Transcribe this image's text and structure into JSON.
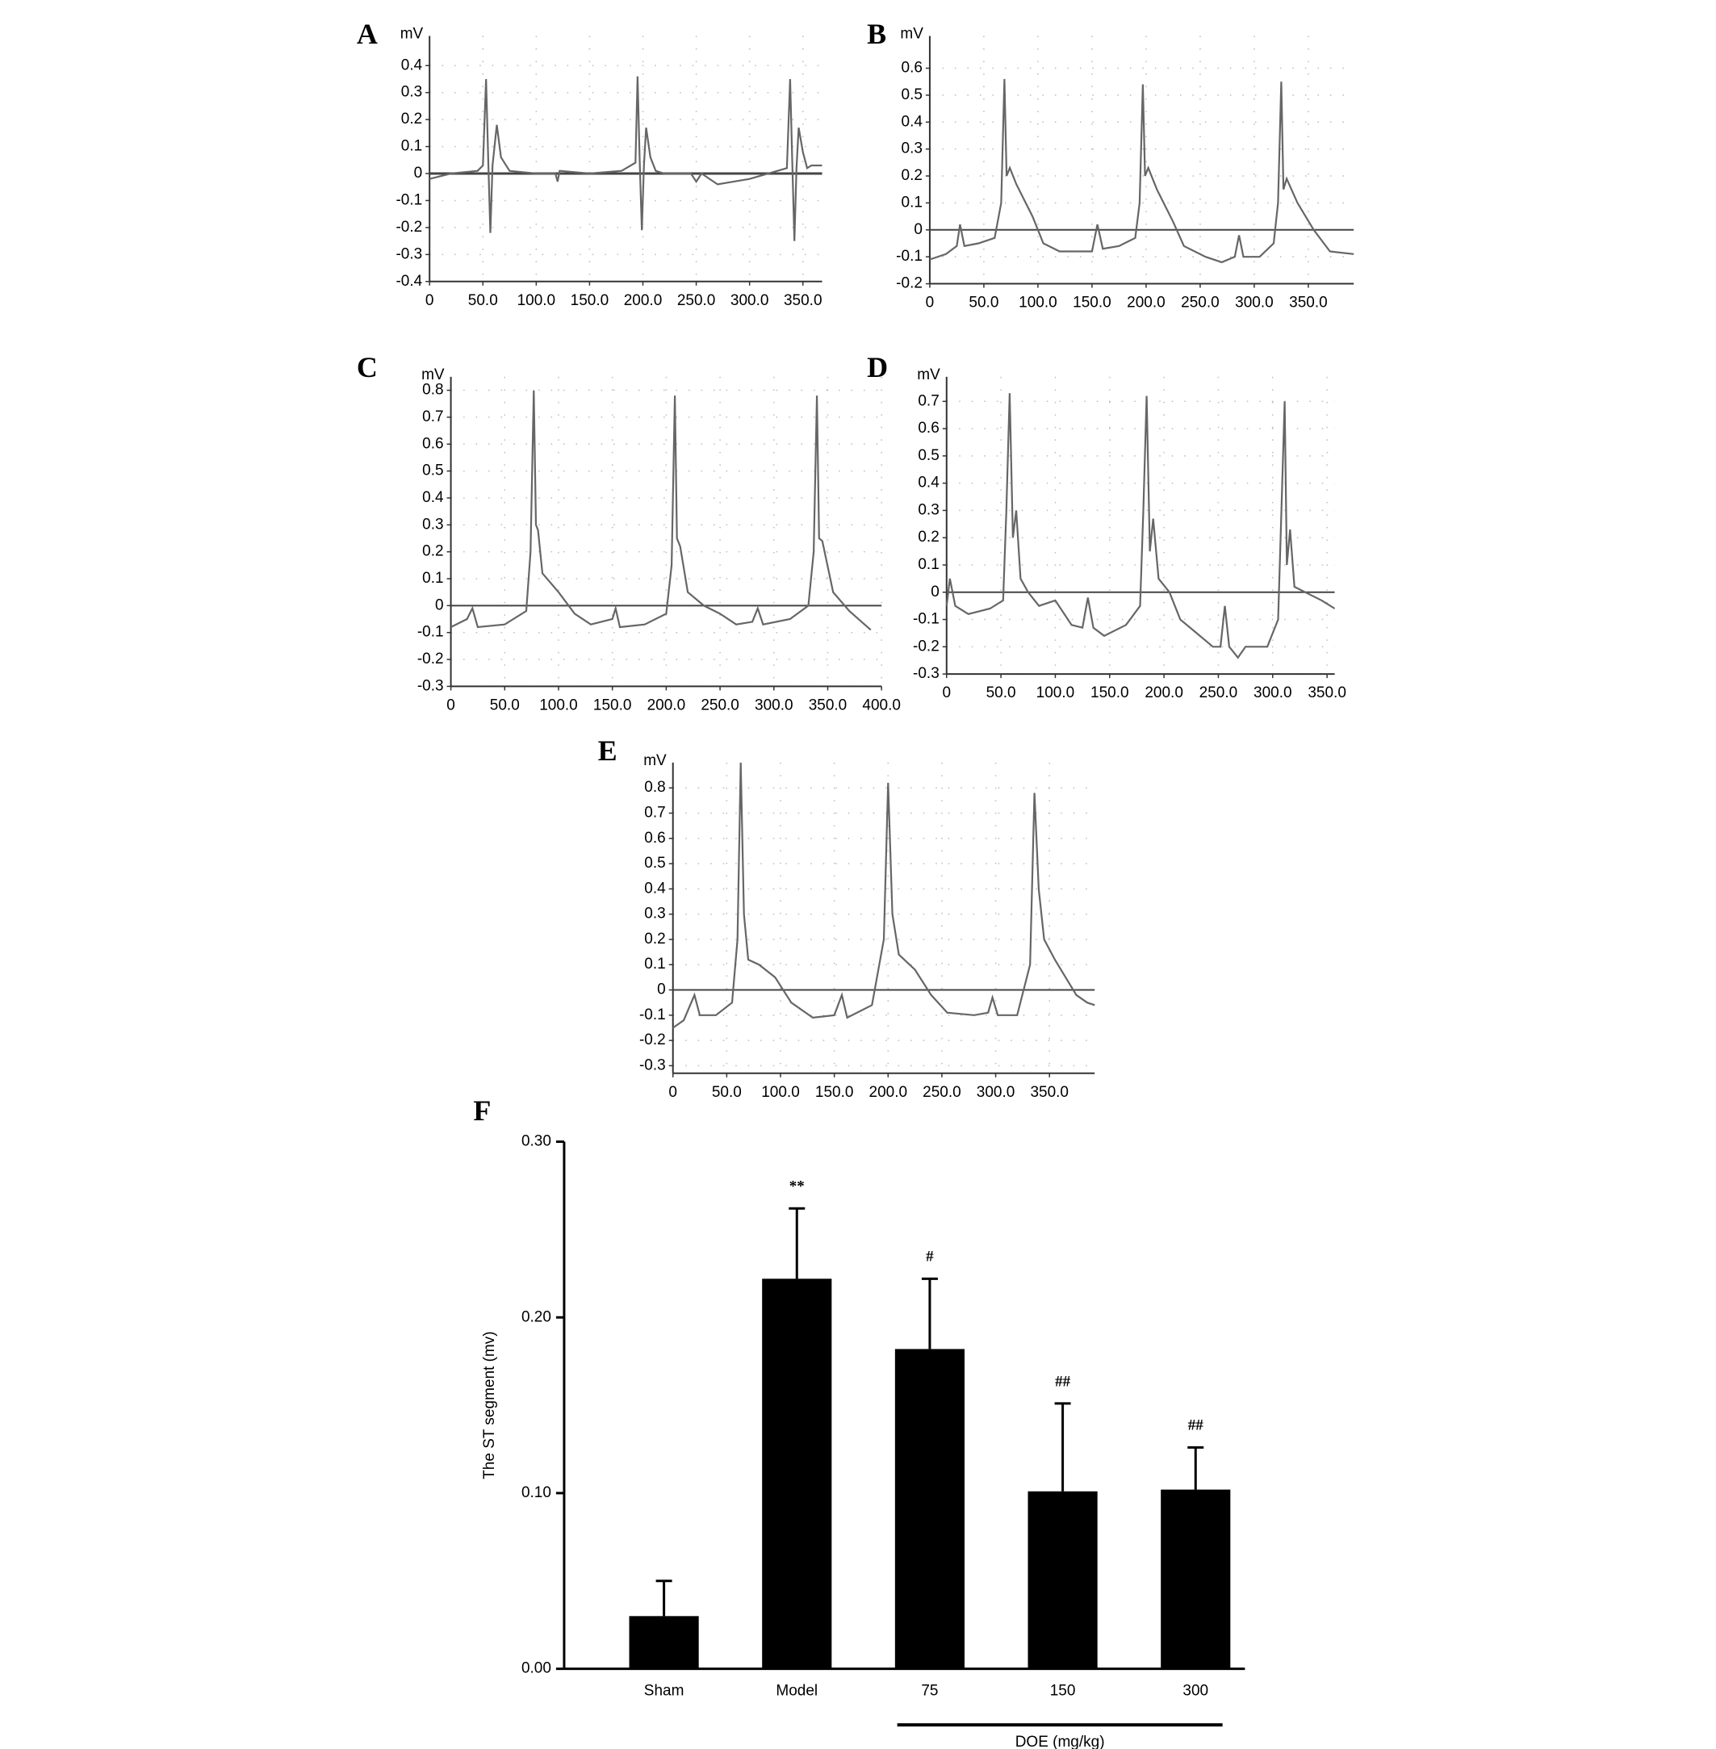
{
  "chart_data": [
    {
      "type": "line",
      "panel": "A",
      "y_label": "mV",
      "color": "#666666",
      "grid": true,
      "xlim": [
        0,
        368
      ],
      "ylim": [
        -0.4,
        0.51
      ],
      "xticks": [
        0,
        {
          "value": 50,
          "label": "50.0"
        },
        {
          "value": 100,
          "label": "100.0"
        },
        {
          "value": 150,
          "label": "150.0"
        },
        {
          "value": 200,
          "label": "200.0"
        },
        {
          "value": 250,
          "label": "250.0"
        },
        {
          "value": 300,
          "label": "300.0"
        },
        {
          "value": 350,
          "label": "350.0"
        }
      ],
      "yticks": [
        -0.4,
        -0.3,
        -0.2,
        -0.1,
        0,
        0.1,
        0.2,
        0.3,
        0.4
      ],
      "x": [
        0,
        20,
        45,
        50,
        53,
        55,
        57,
        59,
        63,
        67,
        75,
        100,
        118,
        120,
        122,
        150,
        180,
        193,
        195,
        197,
        199,
        201,
        203,
        207,
        212,
        220,
        245,
        250,
        255,
        270,
        300,
        335,
        338,
        340,
        342,
        344,
        346,
        350,
        354,
        358,
        368
      ],
      "values": [
        -0.02,
        0,
        0.01,
        0.03,
        0.35,
        0.05,
        -0.22,
        0.03,
        0.18,
        0.06,
        0.01,
        0,
        0,
        -0.03,
        0.01,
        0,
        0.01,
        0.04,
        0.36,
        0.05,
        -0.21,
        0.03,
        0.17,
        0.06,
        0.01,
        0,
        0,
        -0.03,
        0,
        -0.04,
        -0.02,
        0.02,
        0.35,
        0.05,
        -0.25,
        0.02,
        0.17,
        0.08,
        0.02,
        0.03,
        0.03
      ]
    },
    {
      "type": "line",
      "panel": "B",
      "y_label": "mV",
      "color": "#666666",
      "grid": true,
      "xlim": [
        0,
        392
      ],
      "ylim": [
        -0.2,
        0.72
      ],
      "xticks": [
        0,
        {
          "value": 50,
          "label": "50.0"
        },
        {
          "value": 100,
          "label": "100.0"
        },
        {
          "value": 150,
          "label": "150.0"
        },
        {
          "value": 200,
          "label": "200.0"
        },
        {
          "value": 250,
          "label": "250.0"
        },
        {
          "value": 300,
          "label": "300.0"
        },
        {
          "value": 350,
          "label": "350.0"
        }
      ],
      "yticks": [
        -0.2,
        -0.1,
        0,
        0.1,
        0.2,
        0.3,
        0.4,
        0.5,
        0.6
      ],
      "x": [
        0,
        15,
        25,
        28,
        32,
        45,
        60,
        66,
        69,
        71,
        74,
        80,
        95,
        105,
        120,
        150,
        155,
        160,
        175,
        190,
        194,
        197,
        199,
        202,
        210,
        225,
        235,
        255,
        270,
        282,
        286,
        290,
        305,
        318,
        322,
        325,
        327,
        330,
        340,
        355,
        370,
        392
      ],
      "values": [
        -0.11,
        -0.09,
        -0.06,
        0.02,
        -0.06,
        -0.05,
        -0.03,
        0.1,
        0.56,
        0.2,
        0.23,
        0.17,
        0.05,
        -0.05,
        -0.08,
        -0.08,
        0.02,
        -0.07,
        -0.06,
        -0.03,
        0.1,
        0.54,
        0.2,
        0.23,
        0.15,
        0.03,
        -0.06,
        -0.1,
        -0.12,
        -0.1,
        -0.02,
        -0.1,
        -0.1,
        -0.05,
        0.1,
        0.55,
        0.15,
        0.19,
        0.1,
        0,
        -0.08,
        -0.09
      ]
    },
    {
      "type": "line",
      "panel": "C",
      "y_label": "mV",
      "color": "#666666",
      "grid": true,
      "xlim": [
        0,
        400
      ],
      "ylim": [
        -0.3,
        0.85
      ],
      "xticks": [
        0,
        {
          "value": 50,
          "label": "50.0"
        },
        {
          "value": 100,
          "label": "100.0"
        },
        {
          "value": 150,
          "label": "150.0"
        },
        {
          "value": 200,
          "label": "200.0"
        },
        {
          "value": 250,
          "label": "250.0"
        },
        {
          "value": 300,
          "label": "300.0"
        },
        {
          "value": 350,
          "label": "350.0"
        },
        {
          "value": 400,
          "label": "400.0"
        }
      ],
      "yticks": [
        -0.3,
        -0.2,
        -0.1,
        0,
        0.1,
        0.2,
        0.3,
        0.4,
        0.5,
        0.6,
        0.7,
        0.8
      ],
      "x": [
        0,
        15,
        20,
        25,
        50,
        70,
        74,
        77,
        79,
        81,
        85,
        100,
        115,
        130,
        150,
        153,
        157,
        180,
        200,
        205,
        208,
        210,
        213,
        220,
        235,
        250,
        265,
        280,
        285,
        290,
        315,
        332,
        337,
        340,
        342,
        345,
        355,
        370,
        390
      ],
      "values": [
        -0.08,
        -0.05,
        -0.01,
        -0.08,
        -0.07,
        -0.02,
        0.2,
        0.8,
        0.3,
        0.28,
        0.12,
        0.05,
        -0.03,
        -0.07,
        -0.05,
        -0.01,
        -0.08,
        -0.07,
        -0.03,
        0.15,
        0.78,
        0.25,
        0.22,
        0.05,
        0,
        -0.03,
        -0.07,
        -0.06,
        -0.01,
        -0.07,
        -0.05,
        0,
        0.2,
        0.78,
        0.25,
        0.24,
        0.05,
        -0.02,
        -0.09
      ]
    },
    {
      "type": "line",
      "panel": "D",
      "y_label": "mV",
      "color": "#666666",
      "grid": true,
      "xlim": [
        0,
        357
      ],
      "ylim": [
        -0.3,
        0.79
      ],
      "xticks": [
        0,
        {
          "value": 50,
          "label": "50.0"
        },
        {
          "value": 100,
          "label": "100.0"
        },
        {
          "value": 150,
          "label": "150.0"
        },
        {
          "value": 200,
          "label": "200.0"
        },
        {
          "value": 250,
          "label": "250.0"
        },
        {
          "value": 300,
          "label": "300.0"
        },
        {
          "value": 350,
          "label": "350.0"
        }
      ],
      "yticks": [
        -0.3,
        -0.2,
        -0.1,
        0,
        0.1,
        0.2,
        0.3,
        0.4,
        0.5,
        0.6,
        0.7
      ],
      "x": [
        0,
        3,
        8,
        20,
        40,
        52,
        55,
        58,
        61,
        64,
        68,
        75,
        85,
        100,
        115,
        125,
        130,
        135,
        145,
        165,
        178,
        181,
        184,
        187,
        190,
        195,
        205,
        215,
        230,
        245,
        252,
        256,
        260,
        268,
        275,
        295,
        305,
        308,
        311,
        313,
        316,
        320,
        330,
        345,
        357
      ],
      "values": [
        -0.05,
        0.05,
        -0.05,
        -0.08,
        -0.06,
        -0.03,
        0.3,
        0.73,
        0.2,
        0.3,
        0.05,
        0,
        -0.05,
        -0.03,
        -0.12,
        -0.13,
        -0.02,
        -0.13,
        -0.16,
        -0.12,
        -0.05,
        0.3,
        0.72,
        0.15,
        0.27,
        0.05,
        0,
        -0.1,
        -0.15,
        -0.2,
        -0.2,
        -0.05,
        -0.2,
        -0.24,
        -0.2,
        -0.2,
        -0.1,
        0.3,
        0.7,
        0.1,
        0.23,
        0.02,
        0,
        -0.03,
        -0.06
      ]
    },
    {
      "type": "line",
      "panel": "E",
      "y_label": "mV",
      "color": "#666666",
      "grid": true,
      "xlim": [
        0,
        392
      ],
      "ylim": [
        -0.33,
        0.9
      ],
      "xticks": [
        0,
        {
          "value": 50,
          "label": "50.0"
        },
        {
          "value": 100,
          "label": "100.0"
        },
        {
          "value": 150,
          "label": "150.0"
        },
        {
          "value": 200,
          "label": "200.0"
        },
        {
          "value": 250,
          "label": "250.0"
        },
        {
          "value": 300,
          "label": "300.0"
        },
        {
          "value": 350,
          "label": "350.0"
        }
      ],
      "yticks": [
        -0.3,
        -0.2,
        -0.1,
        0,
        0.1,
        0.2,
        0.3,
        0.4,
        0.5,
        0.6,
        0.7,
        0.8
      ],
      "x": [
        0,
        10,
        20,
        25,
        40,
        55,
        60,
        63,
        66,
        70,
        80,
        95,
        110,
        130,
        150,
        157,
        162,
        185,
        196,
        200,
        204,
        210,
        225,
        240,
        255,
        280,
        293,
        297,
        302,
        320,
        332,
        336,
        340,
        345,
        355,
        365,
        375,
        385,
        392
      ],
      "values": [
        -0.15,
        -0.12,
        -0.02,
        -0.1,
        -0.1,
        -0.05,
        0.2,
        0.9,
        0.3,
        0.12,
        0.1,
        0.05,
        -0.05,
        -0.11,
        -0.1,
        -0.02,
        -0.11,
        -0.06,
        0.2,
        0.82,
        0.3,
        0.14,
        0.08,
        -0.02,
        -0.09,
        -0.1,
        -0.09,
        -0.03,
        -0.1,
        -0.1,
        0.1,
        0.78,
        0.4,
        0.2,
        0.12,
        0.05,
        -0.02,
        -0.05,
        -0.06
      ]
    },
    {
      "type": "bar",
      "panel": "F",
      "y_label": "The ST segment (mv)",
      "color": "#000000",
      "ylim": [
        0,
        0.3
      ],
      "yticks": [
        {
          "value": 0,
          "label": "0.00"
        },
        {
          "value": 0.1,
          "label": "0.10"
        },
        {
          "value": 0.2,
          "label": "0.20"
        },
        {
          "value": 0.3,
          "label": "0.30"
        }
      ],
      "categories": [
        "Sham",
        "Model",
        "75",
        "150",
        "300"
      ],
      "values": [
        0.03,
        0.222,
        0.182,
        0.101,
        0.102
      ],
      "errors": [
        0.02,
        0.04,
        0.04,
        0.05,
        0.024
      ],
      "annotations": [
        null,
        "**",
        "#",
        "##",
        "##"
      ],
      "group_label": "DOE (mg/kg)"
    }
  ]
}
